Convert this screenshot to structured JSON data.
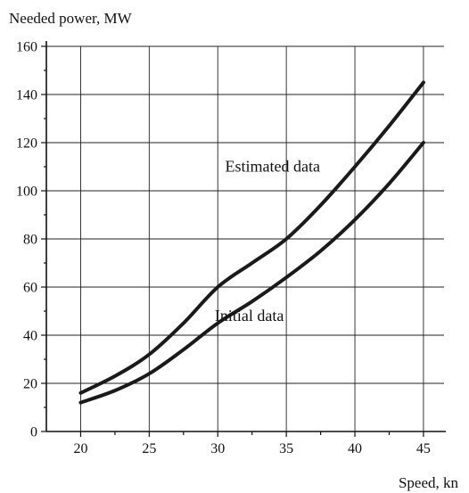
{
  "chart_data": {
    "type": "line",
    "title": "",
    "ylabel": "Needed power, MW",
    "xlabel": "Speed, kn",
    "xlim": [
      17.5,
      46.5
    ],
    "ylim": [
      0,
      160
    ],
    "x_ticks": [
      20,
      25,
      30,
      35,
      40,
      45
    ],
    "y_ticks": [
      0,
      20,
      40,
      60,
      80,
      100,
      120,
      140,
      160
    ],
    "grid": true,
    "series": [
      {
        "name": "Estimated data",
        "color": "#1a1a1a",
        "x": [
          20,
          22.5,
          25,
          27.5,
          30,
          32.5,
          35,
          37.5,
          40,
          42.5,
          45
        ],
        "values": [
          16,
          23,
          32,
          45,
          60,
          70,
          80,
          94,
          110,
          127,
          145
        ]
      },
      {
        "name": "Initial data",
        "color": "#1a1a1a",
        "x": [
          20,
          22.5,
          25,
          27.5,
          30,
          32.5,
          35,
          37.5,
          40,
          42.5,
          45
        ],
        "values": [
          12,
          17,
          24,
          34,
          45,
          54,
          64,
          75,
          88,
          103,
          120
        ]
      }
    ],
    "annotations": [
      {
        "text": "Estimated data",
        "x": 34,
        "y": 108
      },
      {
        "text": "Initial data",
        "x": 32.3,
        "y": 46
      }
    ]
  }
}
